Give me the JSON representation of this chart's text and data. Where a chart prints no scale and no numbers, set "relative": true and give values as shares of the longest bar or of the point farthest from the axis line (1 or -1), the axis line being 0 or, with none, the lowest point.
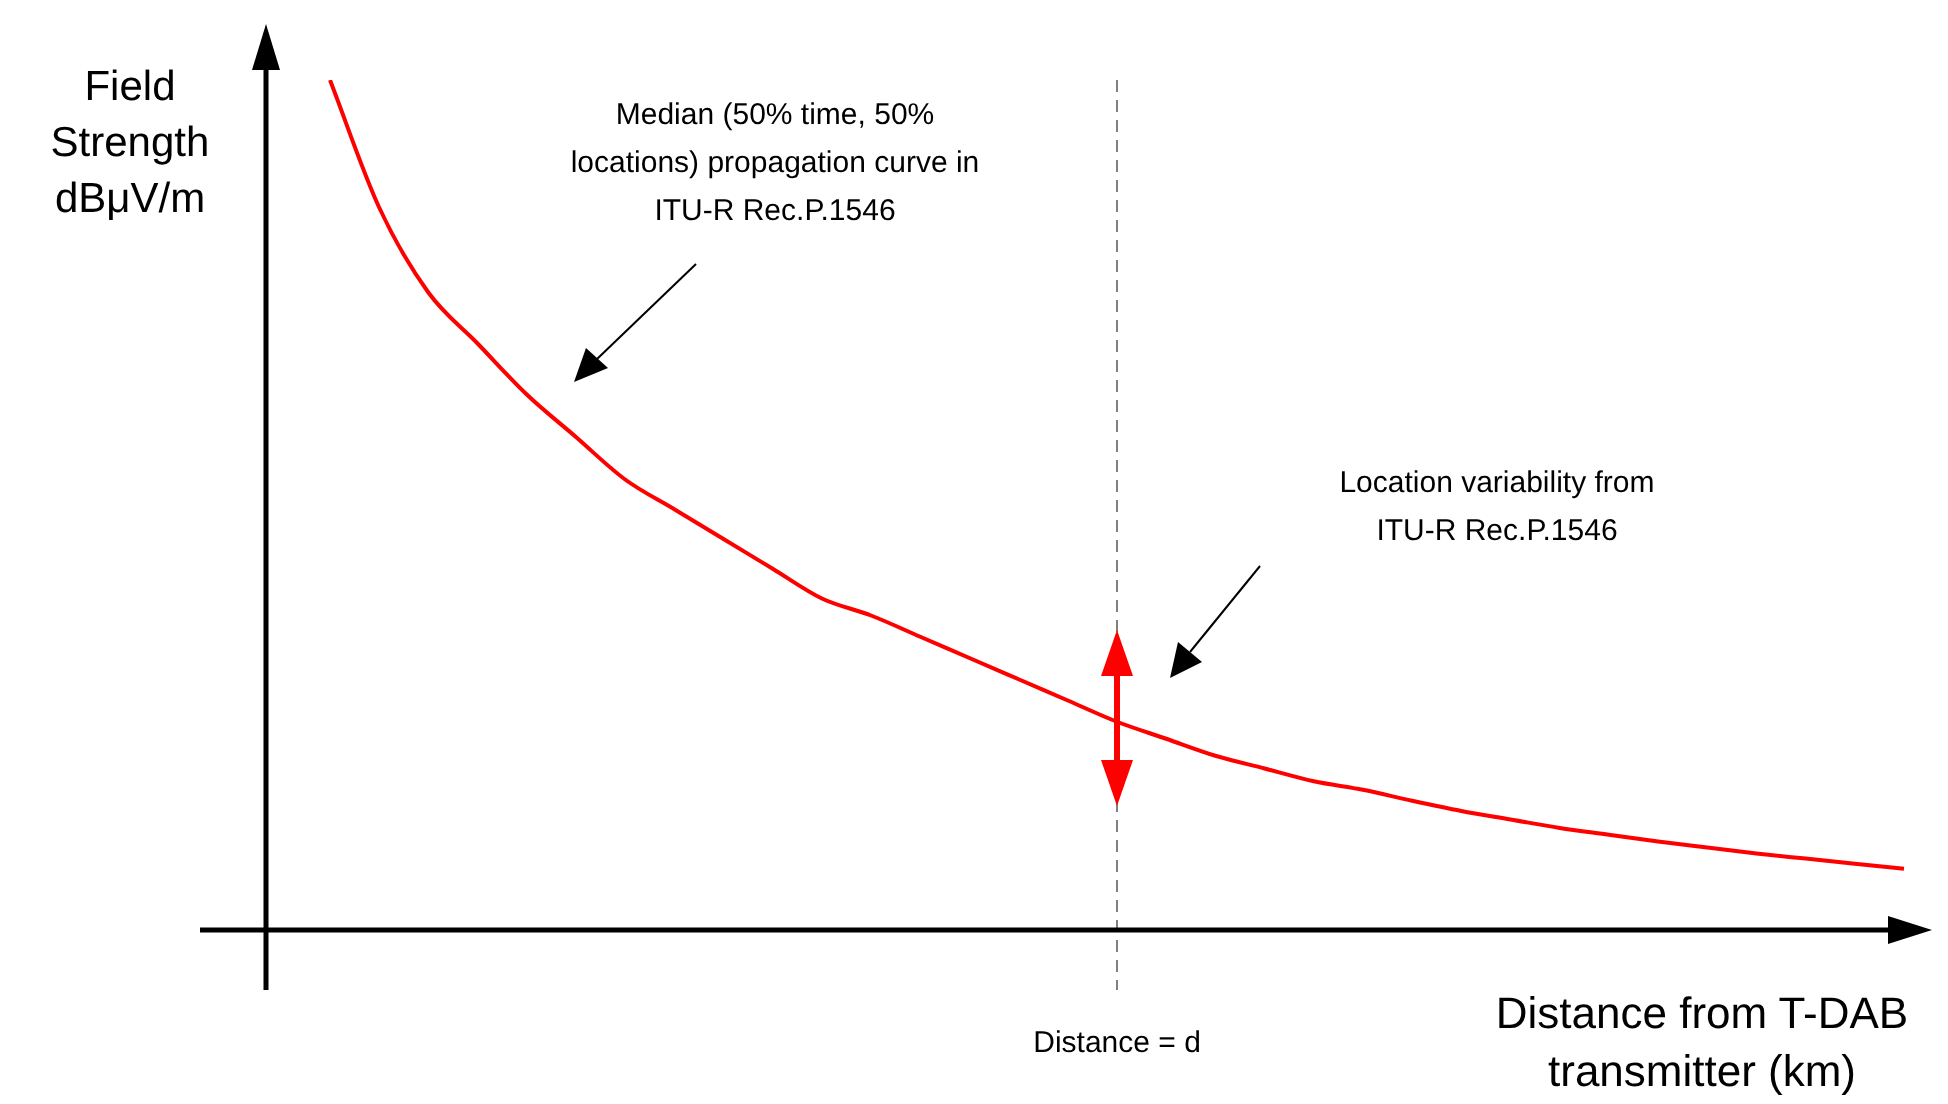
{
  "chart_data": {
    "type": "line",
    "relative": true,
    "ylabel": "Field Strength dBμV/m",
    "xlabel": "Distance from T-DAB transmitter (km)",
    "categories": [
      null,
      null,
      null,
      null,
      null,
      null,
      null,
      null,
      null,
      null,
      null,
      null,
      null,
      null,
      null,
      null,
      null,
      null,
      null,
      null,
      null,
      null,
      null,
      null,
      null,
      null,
      null,
      null,
      null,
      null,
      null,
      null,
      null
    ],
    "series": [
      {
        "color": "#ff0000",
        "values": [
          1,
          0.85,
          0.75,
          0.69,
          0.63,
          0.58,
          0.53,
          0.495,
          0.46,
          0.425,
          0.39,
          0.37,
          0.345,
          0.32,
          0.295,
          0.27,
          0.245,
          0.225,
          0.205,
          0.19,
          0.175,
          0.165,
          0.152,
          0.14,
          0.13,
          0.12,
          0.112,
          0.104,
          0.097,
          0.09,
          0.084,
          0.078,
          0.072
        ]
      }
    ],
    "ref_lines": [
      {
        "axis": "x",
        "label": "Distance = d",
        "color": "#808080",
        "line_style": "dashed"
      }
    ],
    "annotations": [
      "Median (50% time, 50% locations) propagation curve in ITU-R Rec.P.1546",
      "Location variability from ITU-R Rec.P.1546"
    ],
    "grid": false,
    "legend": false,
    "marker": "none",
    "line_style": "solid"
  }
}
